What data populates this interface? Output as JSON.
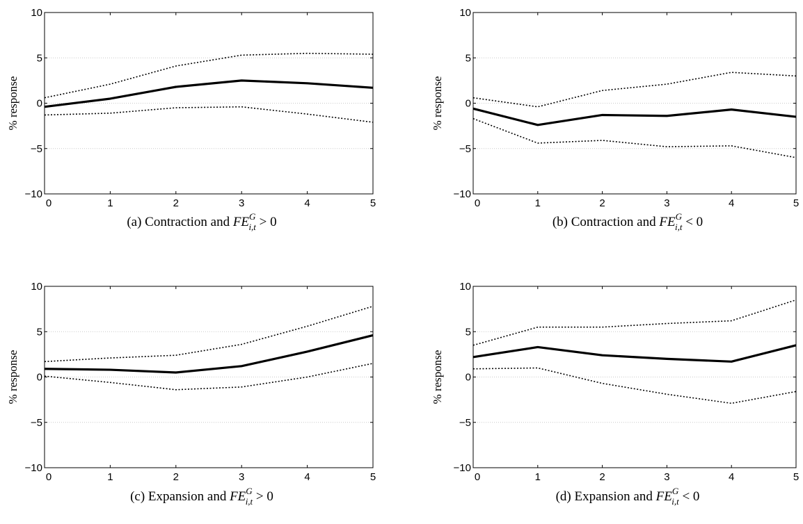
{
  "chart_data": [
    {
      "type": "line",
      "panel": "a",
      "caption": {
        "prefix": "(a) Contraction and ",
        "math": "FE",
        "sup": "G",
        "sub": "i,t",
        "suffix": " > 0"
      },
      "ylabel": "% response",
      "xlim": [
        0,
        5
      ],
      "ylim": [
        -10,
        10
      ],
      "xticks": [
        0,
        1,
        2,
        3,
        4,
        5
      ],
      "yticks": [
        -10,
        -5,
        0,
        5,
        10
      ],
      "ytick_labels": [
        "−10",
        "−5",
        "0",
        "5",
        "10"
      ],
      "grid": true,
      "x": [
        0,
        1,
        2,
        3,
        4,
        5
      ],
      "series": [
        {
          "role": "upper",
          "style": "dotted",
          "values": [
            0.6,
            2.1,
            4.1,
            5.3,
            5.5,
            5.4
          ]
        },
        {
          "role": "estimate",
          "style": "solid",
          "values": [
            -0.4,
            0.5,
            1.8,
            2.5,
            2.2,
            1.7
          ]
        },
        {
          "role": "lower",
          "style": "dotted",
          "values": [
            -1.3,
            -1.1,
            -0.5,
            -0.4,
            -1.2,
            -2.1
          ]
        }
      ]
    },
    {
      "type": "line",
      "panel": "b",
      "caption": {
        "prefix": "(b) Contraction and ",
        "math": "FE",
        "sup": "G",
        "sub": "i,t",
        "suffix": " < 0"
      },
      "ylabel": "% response",
      "xlim": [
        0,
        5
      ],
      "ylim": [
        -10,
        10
      ],
      "xticks": [
        0,
        1,
        2,
        3,
        4,
        5
      ],
      "yticks": [
        -10,
        -5,
        0,
        5,
        10
      ],
      "ytick_labels": [
        "−10",
        "−5",
        "0",
        "5",
        "10"
      ],
      "grid": true,
      "x": [
        0,
        1,
        2,
        3,
        4,
        5
      ],
      "series": [
        {
          "role": "upper",
          "style": "dotted",
          "values": [
            0.6,
            -0.4,
            1.4,
            2.1,
            3.4,
            3.0
          ]
        },
        {
          "role": "estimate",
          "style": "solid",
          "values": [
            -0.6,
            -2.4,
            -1.3,
            -1.4,
            -0.7,
            -1.5
          ]
        },
        {
          "role": "lower",
          "style": "dotted",
          "values": [
            -1.7,
            -4.4,
            -4.1,
            -4.8,
            -4.7,
            -6.0
          ]
        }
      ]
    },
    {
      "type": "line",
      "panel": "c",
      "caption": {
        "prefix": "(c) Expansion and ",
        "math": "FE",
        "sup": "G",
        "sub": "i,t",
        "suffix": " > 0"
      },
      "ylabel": "% response",
      "xlim": [
        0,
        5
      ],
      "ylim": [
        -10,
        10
      ],
      "xticks": [
        0,
        1,
        2,
        3,
        4,
        5
      ],
      "yticks": [
        -10,
        -5,
        0,
        5,
        10
      ],
      "ytick_labels": [
        "−10",
        "−5",
        "0",
        "5",
        "10"
      ],
      "grid": true,
      "x": [
        0,
        1,
        2,
        3,
        4,
        5
      ],
      "series": [
        {
          "role": "upper",
          "style": "dotted",
          "values": [
            1.7,
            2.1,
            2.4,
            3.6,
            5.6,
            7.8
          ]
        },
        {
          "role": "estimate",
          "style": "solid",
          "values": [
            0.9,
            0.8,
            0.5,
            1.2,
            2.8,
            4.6
          ]
        },
        {
          "role": "lower",
          "style": "dotted",
          "values": [
            0.1,
            -0.6,
            -1.4,
            -1.1,
            0.0,
            1.5
          ]
        }
      ]
    },
    {
      "type": "line",
      "panel": "d",
      "caption": {
        "prefix": "(d) Expansion and ",
        "math": "FE",
        "sup": "G",
        "sub": "i,t",
        "suffix": " < 0"
      },
      "ylabel": "% response",
      "xlim": [
        0,
        5
      ],
      "ylim": [
        -10,
        10
      ],
      "xticks": [
        0,
        1,
        2,
        3,
        4,
        5
      ],
      "yticks": [
        -10,
        -5,
        0,
        5,
        10
      ],
      "ytick_labels": [
        "−10",
        "−5",
        "0",
        "5",
        "10"
      ],
      "grid": true,
      "x": [
        0,
        1,
        2,
        3,
        4,
        5
      ],
      "series": [
        {
          "role": "upper",
          "style": "dotted",
          "values": [
            3.5,
            5.5,
            5.5,
            5.9,
            6.2,
            8.5
          ]
        },
        {
          "role": "estimate",
          "style": "solid",
          "values": [
            2.2,
            3.3,
            2.4,
            2.0,
            1.7,
            3.5
          ]
        },
        {
          "role": "lower",
          "style": "dotted",
          "values": [
            0.9,
            1.0,
            -0.7,
            -1.9,
            -2.9,
            -1.6
          ]
        }
      ]
    }
  ]
}
